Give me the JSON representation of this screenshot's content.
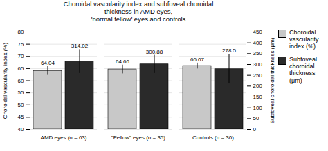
{
  "chart_data": {
    "type": "bar",
    "title": "Choroidal vascularity index and subfoveal choroidal\nthickness in AMD eyes,\n'normal fellow' eyes and controls",
    "categories": [
      "AMD eyes (n = 63)",
      "\"Fellow\" eyes (n = 35)",
      "Controls (n = 30)"
    ],
    "series": [
      {
        "name": "Choroidal\nvascularity\nindex (%)",
        "color": "#c8c8c8",
        "values": [
          64.04,
          64.66,
          66.07
        ],
        "errors": [
          1.8,
          1.8,
          1.2
        ]
      },
      {
        "name": "Subfoveal\nchoroidal\nthickness\n(μm)",
        "color": "#2a2a2a",
        "values": [
          314.02,
          300.88,
          278.5
        ],
        "errors": [
          55,
          42,
          68
        ],
        "axis": "y2"
      }
    ],
    "ylabel": "Choroidal vascularity index (%)",
    "y2label": "Subfoveal choroidal thickness (μm)",
    "ylim": [
      40,
      80
    ],
    "yticks": [
      40,
      45,
      50,
      55,
      60,
      65,
      70,
      75,
      80
    ],
    "y2lim": [
      0,
      450
    ],
    "y2ticks": [
      0,
      50,
      100,
      150,
      200,
      250,
      300,
      350,
      400,
      450
    ],
    "grid": true,
    "data_labels": true,
    "legend": "right"
  }
}
